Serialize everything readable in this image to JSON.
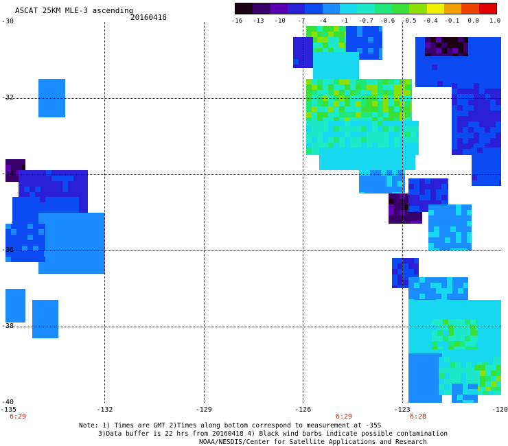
{
  "header": {
    "title": "ASCAT 25KM MLE-3 ascending",
    "date": "20160418"
  },
  "colorbar": {
    "ticks": [
      "-16",
      "-13",
      "-10",
      "-7",
      "-4",
      "-1",
      "-0.7",
      "-0.6",
      "-0.5",
      "-0.4",
      "-0.1",
      "0.0",
      "1.0"
    ],
    "colors": [
      "#1a0010",
      "#3a006a",
      "#5a00b0",
      "#2a20d8",
      "#0a4af0",
      "#1a8cff",
      "#18d8f0",
      "#1de8c8",
      "#20e878",
      "#38e038",
      "#8ae000",
      "#f0f000",
      "#f0a000",
      "#f04000",
      "#e00000"
    ]
  },
  "axes": {
    "x_ticks": [
      "-135",
      "-132",
      "-129",
      "-126",
      "-123",
      "-120"
    ],
    "y_ticks": [
      "-30",
      "-32",
      "-34",
      "-36",
      "-38",
      "-40"
    ],
    "time_labels": [
      "6:29",
      "6:29",
      "6:28"
    ]
  },
  "notes": {
    "line1": "Note: 1) Times are GMT 2)Times along bottom correspond to measurement at -35S",
    "line2": "3)Data buffer is 22 hrs from 20160418 4) Black wind barbs indicate possible contamination",
    "line3": "NOAA/NESDIS/Center for Satellite Applications and Research"
  },
  "map_data": {
    "lon_range": [
      -135,
      -120
    ],
    "lat_range": [
      -30,
      -40
    ],
    "swaths": [
      {
        "lon": [
          -134.0,
          -133.2
        ],
        "lat": [
          -31.5,
          -32.5
        ],
        "value": -2.5
      },
      {
        "lon": [
          -135.0,
          -134.4
        ],
        "lat": [
          -33.6,
          -34.2
        ],
        "value": -13
      },
      {
        "lon": [
          -134.6,
          -132.5
        ],
        "lat": [
          -33.9,
          -35.4
        ],
        "value": -8
      },
      {
        "lon": [
          -134.8,
          -132.8
        ],
        "lat": [
          -34.6,
          -35.5
        ],
        "value": -6
      },
      {
        "lon": [
          -134.0,
          -132.0
        ],
        "lat": [
          -35.0,
          -36.6
        ],
        "value": -2.5
      },
      {
        "lon": [
          -135.0,
          -133.8
        ],
        "lat": [
          -35.3,
          -36.3
        ],
        "value": -5
      },
      {
        "lon": [
          -135.0,
          -134.4
        ],
        "lat": [
          -37.0,
          -37.9
        ],
        "value": -3
      },
      {
        "lon": [
          -134.2,
          -133.4
        ],
        "lat": [
          -37.3,
          -38.3
        ],
        "value": -2.5
      },
      {
        "lon": [
          -125.9,
          -124.5
        ],
        "lat": [
          -30.1,
          -31.0
        ],
        "value": -0.6
      },
      {
        "lon": [
          -124.7,
          -123.6
        ],
        "lat": [
          -30.1,
          -31.0
        ],
        "value": -5
      },
      {
        "lon": [
          -126.3,
          -125.7
        ],
        "lat": [
          -30.4,
          -31.2
        ],
        "value": -8
      },
      {
        "lon": [
          -125.7,
          -124.3
        ],
        "lat": [
          -30.8,
          -31.8
        ],
        "value": -1
      },
      {
        "lon": [
          -125.9,
          -122.7
        ],
        "lat": [
          -31.5,
          -32.9
        ],
        "value": -0.6
      },
      {
        "lon": [
          -125.9,
          -122.5
        ],
        "lat": [
          -32.6,
          -33.5
        ],
        "value": -0.8
      },
      {
        "lon": [
          -125.5,
          -122.6
        ],
        "lat": [
          -33.3,
          -33.9
        ],
        "value": -1.5
      },
      {
        "lon": [
          -124.3,
          -122.9
        ],
        "lat": [
          -33.9,
          -34.5
        ],
        "value": -2
      },
      {
        "lon": [
          -123.4,
          -122.4
        ],
        "lat": [
          -34.5,
          -35.3
        ],
        "value": -13
      },
      {
        "lon": [
          -122.8,
          -121.6
        ],
        "lat": [
          -34.1,
          -35.0
        ],
        "value": -7
      },
      {
        "lon": [
          -122.2,
          -120.9
        ],
        "lat": [
          -34.8,
          -36.0
        ],
        "value": -2
      },
      {
        "lon": [
          -122.6,
          -120.0
        ],
        "lat": [
          -30.4,
          -31.7
        ],
        "value": -6
      },
      {
        "lon": [
          -122.3,
          -121.0
        ],
        "lat": [
          -30.4,
          -30.9
        ],
        "value": -14
      },
      {
        "lon": [
          -121.5,
          -120.0
        ],
        "lat": [
          -31.6,
          -33.5
        ],
        "value": -7
      },
      {
        "lon": [
          -120.9,
          -120.0
        ],
        "lat": [
          -33.3,
          -34.3
        ],
        "value": -6
      },
      {
        "lon": [
          -123.3,
          -122.5
        ],
        "lat": [
          -36.2,
          -37.0
        ],
        "value": -7
      },
      {
        "lon": [
          -122.8,
          -121.0
        ],
        "lat": [
          -36.7,
          -37.5
        ],
        "value": -2
      },
      {
        "lon": [
          -122.8,
          -120.0
        ],
        "lat": [
          -37.3,
          -38.9
        ],
        "value": -1.2
      },
      {
        "lon": [
          -122.1,
          -120.7
        ],
        "lat": [
          -37.8,
          -38.6
        ],
        "value": -0.7
      },
      {
        "lon": [
          -122.8,
          -121.8
        ],
        "lat": [
          -38.7,
          -40.0
        ],
        "value": -2.5
      },
      {
        "lon": [
          -121.9,
          -120.0
        ],
        "lat": [
          -38.8,
          -39.8
        ],
        "value": -0.8
      },
      {
        "lon": [
          -120.8,
          -120.0
        ],
        "lat": [
          -39.0,
          -39.7
        ],
        "value": -0.6
      },
      {
        "lon": [
          -121.5,
          -120.7
        ],
        "lat": [
          -39.5,
          -40.0
        ],
        "value": -2
      }
    ]
  }
}
